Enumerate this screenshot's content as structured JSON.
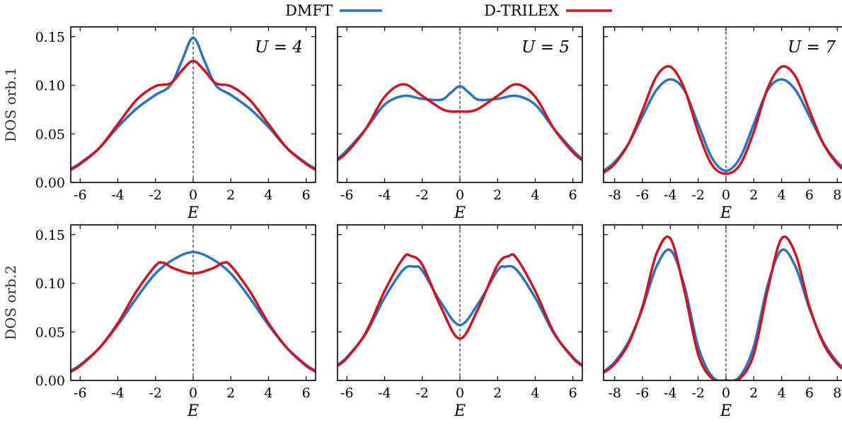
{
  "legend": {
    "items": [
      {
        "label": "DMFT",
        "color": "#2a72c2"
      },
      {
        "label": "D-TRILEX",
        "color": "#d0131f"
      }
    ]
  },
  "chart_data": [
    {
      "type": "line",
      "row": 1,
      "col": 1,
      "annotation": "U = 4",
      "ylabel": "DOS orb.1",
      "xlabel": "E",
      "xlim": [
        -6.5,
        6.5
      ],
      "ylim": [
        0,
        0.16
      ],
      "xticks": [
        -6,
        -4,
        -2,
        0,
        2,
        4,
        6
      ],
      "yticks": [
        "0.00",
        "0.05",
        "0.10",
        "0.15"
      ],
      "series": [
        {
          "name": "DMFT",
          "x": [
            -6.5,
            -6,
            -5,
            -4,
            -3,
            -2,
            -1.2,
            -0.6,
            0,
            0.6,
            1.2,
            2,
            3,
            4,
            5,
            6,
            6.5
          ],
          "y": [
            0.014,
            0.02,
            0.035,
            0.057,
            0.076,
            0.09,
            0.1,
            0.125,
            0.149,
            0.125,
            0.1,
            0.09,
            0.076,
            0.057,
            0.035,
            0.02,
            0.014
          ]
        },
        {
          "name": "D-TRILEX",
          "x": [
            -6.5,
            -6,
            -5,
            -4,
            -3,
            -2,
            -1.2,
            -0.6,
            0,
            0.6,
            1.2,
            2,
            3,
            4,
            5,
            6,
            6.5
          ],
          "y": [
            0.013,
            0.019,
            0.035,
            0.06,
            0.085,
            0.099,
            0.102,
            0.115,
            0.125,
            0.115,
            0.102,
            0.099,
            0.085,
            0.06,
            0.035,
            0.019,
            0.013
          ]
        }
      ]
    },
    {
      "type": "line",
      "row": 1,
      "col": 2,
      "annotation": "U = 5",
      "xlabel": "E",
      "xlim": [
        -6.5,
        6.5
      ],
      "ylim": [
        0,
        0.16
      ],
      "xticks": [
        -6,
        -4,
        -2,
        0,
        2,
        4,
        6
      ],
      "series": [
        {
          "name": "DMFT",
          "x": [
            -6.5,
            -6,
            -5,
            -4,
            -3,
            -2,
            -1,
            -0.5,
            0,
            0.5,
            1,
            2,
            3,
            4,
            5,
            6,
            6.5
          ],
          "y": [
            0.024,
            0.033,
            0.055,
            0.08,
            0.089,
            0.086,
            0.085,
            0.092,
            0.099,
            0.092,
            0.085,
            0.086,
            0.089,
            0.08,
            0.055,
            0.033,
            0.024
          ]
        },
        {
          "name": "D-TRILEX",
          "x": [
            -6.5,
            -6,
            -5,
            -4,
            -3,
            -2,
            -1,
            -0.5,
            0,
            0.5,
            1,
            2,
            3,
            4,
            5,
            6,
            6.5
          ],
          "y": [
            0.023,
            0.031,
            0.055,
            0.088,
            0.101,
            0.089,
            0.076,
            0.073,
            0.073,
            0.073,
            0.076,
            0.089,
            0.101,
            0.088,
            0.055,
            0.031,
            0.023
          ]
        }
      ]
    },
    {
      "type": "line",
      "row": 1,
      "col": 3,
      "annotation": "U = 7",
      "xlabel": "E",
      "xlim": [
        -8.8,
        8.8
      ],
      "ylim": [
        0,
        0.16
      ],
      "xticks": [
        -8,
        -6,
        -4,
        -2,
        0,
        2,
        4,
        6,
        8
      ],
      "series": [
        {
          "name": "DMFT",
          "x": [
            -8.8,
            -8,
            -7,
            -6,
            -5,
            -4,
            -3,
            -2,
            -1,
            0,
            1,
            2,
            3,
            4,
            5,
            6,
            7,
            8,
            8.8
          ],
          "y": [
            0.012,
            0.021,
            0.04,
            0.068,
            0.095,
            0.106,
            0.095,
            0.06,
            0.025,
            0.012,
            0.025,
            0.06,
            0.095,
            0.106,
            0.095,
            0.068,
            0.04,
            0.021,
            0.012
          ]
        },
        {
          "name": "D-TRILEX",
          "x": [
            -8.8,
            -8,
            -7,
            -6,
            -5,
            -4,
            -3,
            -2,
            -1,
            0,
            1,
            2,
            3,
            4,
            5,
            6,
            7,
            8,
            8.8
          ],
          "y": [
            0.01,
            0.019,
            0.04,
            0.074,
            0.109,
            0.119,
            0.097,
            0.052,
            0.018,
            0.009,
            0.018,
            0.052,
            0.097,
            0.119,
            0.109,
            0.074,
            0.04,
            0.019,
            0.01
          ]
        }
      ]
    },
    {
      "type": "line",
      "row": 2,
      "col": 1,
      "ylabel": "DOS orb.2",
      "xlabel": "E",
      "xlim": [
        -6.5,
        6.5
      ],
      "ylim": [
        0,
        0.16
      ],
      "xticks": [
        -6,
        -4,
        -2,
        0,
        2,
        4,
        6
      ],
      "yticks": [
        "0.00",
        "0.05",
        "0.10",
        "0.15"
      ],
      "series": [
        {
          "name": "DMFT",
          "x": [
            -6.5,
            -6,
            -5,
            -4,
            -3,
            -2,
            -1,
            0,
            1,
            2,
            3,
            4,
            5,
            6,
            6.5
          ],
          "y": [
            0.01,
            0.016,
            0.033,
            0.057,
            0.085,
            0.11,
            0.125,
            0.132,
            0.125,
            0.11,
            0.085,
            0.057,
            0.033,
            0.016,
            0.01
          ]
        },
        {
          "name": "D-TRILEX",
          "x": [
            -6.5,
            -6,
            -5,
            -4,
            -3,
            -2,
            -1.6,
            -1,
            0,
            1,
            1.6,
            2,
            3,
            4,
            5,
            6,
            6.5
          ],
          "y": [
            0.009,
            0.015,
            0.033,
            0.059,
            0.092,
            0.118,
            0.121,
            0.115,
            0.11,
            0.115,
            0.121,
            0.118,
            0.092,
            0.059,
            0.033,
            0.015,
            0.009
          ]
        }
      ]
    },
    {
      "type": "line",
      "row": 2,
      "col": 2,
      "xlabel": "E",
      "xlim": [
        -6.5,
        6.5
      ],
      "ylim": [
        0,
        0.16
      ],
      "xticks": [
        -6,
        -4,
        -2,
        0,
        2,
        4,
        6
      ],
      "series": [
        {
          "name": "DMFT",
          "x": [
            -6.5,
            -6,
            -5,
            -4,
            -3,
            -2.4,
            -2,
            -1,
            0,
            1,
            2,
            2.4,
            3,
            4,
            5,
            6,
            6.5
          ],
          "y": [
            0.016,
            0.024,
            0.048,
            0.085,
            0.114,
            0.117,
            0.113,
            0.08,
            0.057,
            0.08,
            0.113,
            0.117,
            0.114,
            0.085,
            0.048,
            0.024,
            0.016
          ]
        },
        {
          "name": "D-TRILEX",
          "x": [
            -6.5,
            -6,
            -5,
            -4,
            -3,
            -2.6,
            -2,
            -1,
            0,
            1,
            2,
            2.6,
            3,
            4,
            5,
            6,
            6.5
          ],
          "y": [
            0.015,
            0.023,
            0.049,
            0.092,
            0.126,
            0.128,
            0.119,
            0.075,
            0.043,
            0.075,
            0.119,
            0.128,
            0.126,
            0.092,
            0.049,
            0.023,
            0.015
          ]
        }
      ]
    },
    {
      "type": "line",
      "row": 2,
      "col": 3,
      "xlabel": "E",
      "xlim": [
        -8.8,
        8.8
      ],
      "ylim": [
        0,
        0.16
      ],
      "xticks": [
        -8,
        -6,
        -4,
        -2,
        0,
        2,
        4,
        6,
        8
      ],
      "series": [
        {
          "name": "DMFT",
          "x": [
            -8.8,
            -8,
            -7,
            -6,
            -5,
            -4,
            -3,
            -2,
            -1,
            0,
            1,
            2,
            3,
            4,
            5,
            6,
            7,
            8,
            8.8
          ],
          "y": [
            0.009,
            0.019,
            0.04,
            0.074,
            0.117,
            0.134,
            0.098,
            0.035,
            0.004,
            0.0,
            0.004,
            0.035,
            0.098,
            0.134,
            0.117,
            0.074,
            0.04,
            0.019,
            0.009
          ]
        },
        {
          "name": "D-TRILEX",
          "x": [
            -8.8,
            -8,
            -7,
            -6,
            -5,
            -4,
            -3,
            -2,
            -1,
            0,
            1,
            2,
            3,
            4,
            5,
            6,
            7,
            8,
            8.8
          ],
          "y": [
            0.008,
            0.017,
            0.038,
            0.076,
            0.13,
            0.146,
            0.093,
            0.027,
            0.002,
            0.0,
            0.002,
            0.027,
            0.093,
            0.146,
            0.13,
            0.076,
            0.038,
            0.017,
            0.008
          ]
        }
      ]
    }
  ]
}
